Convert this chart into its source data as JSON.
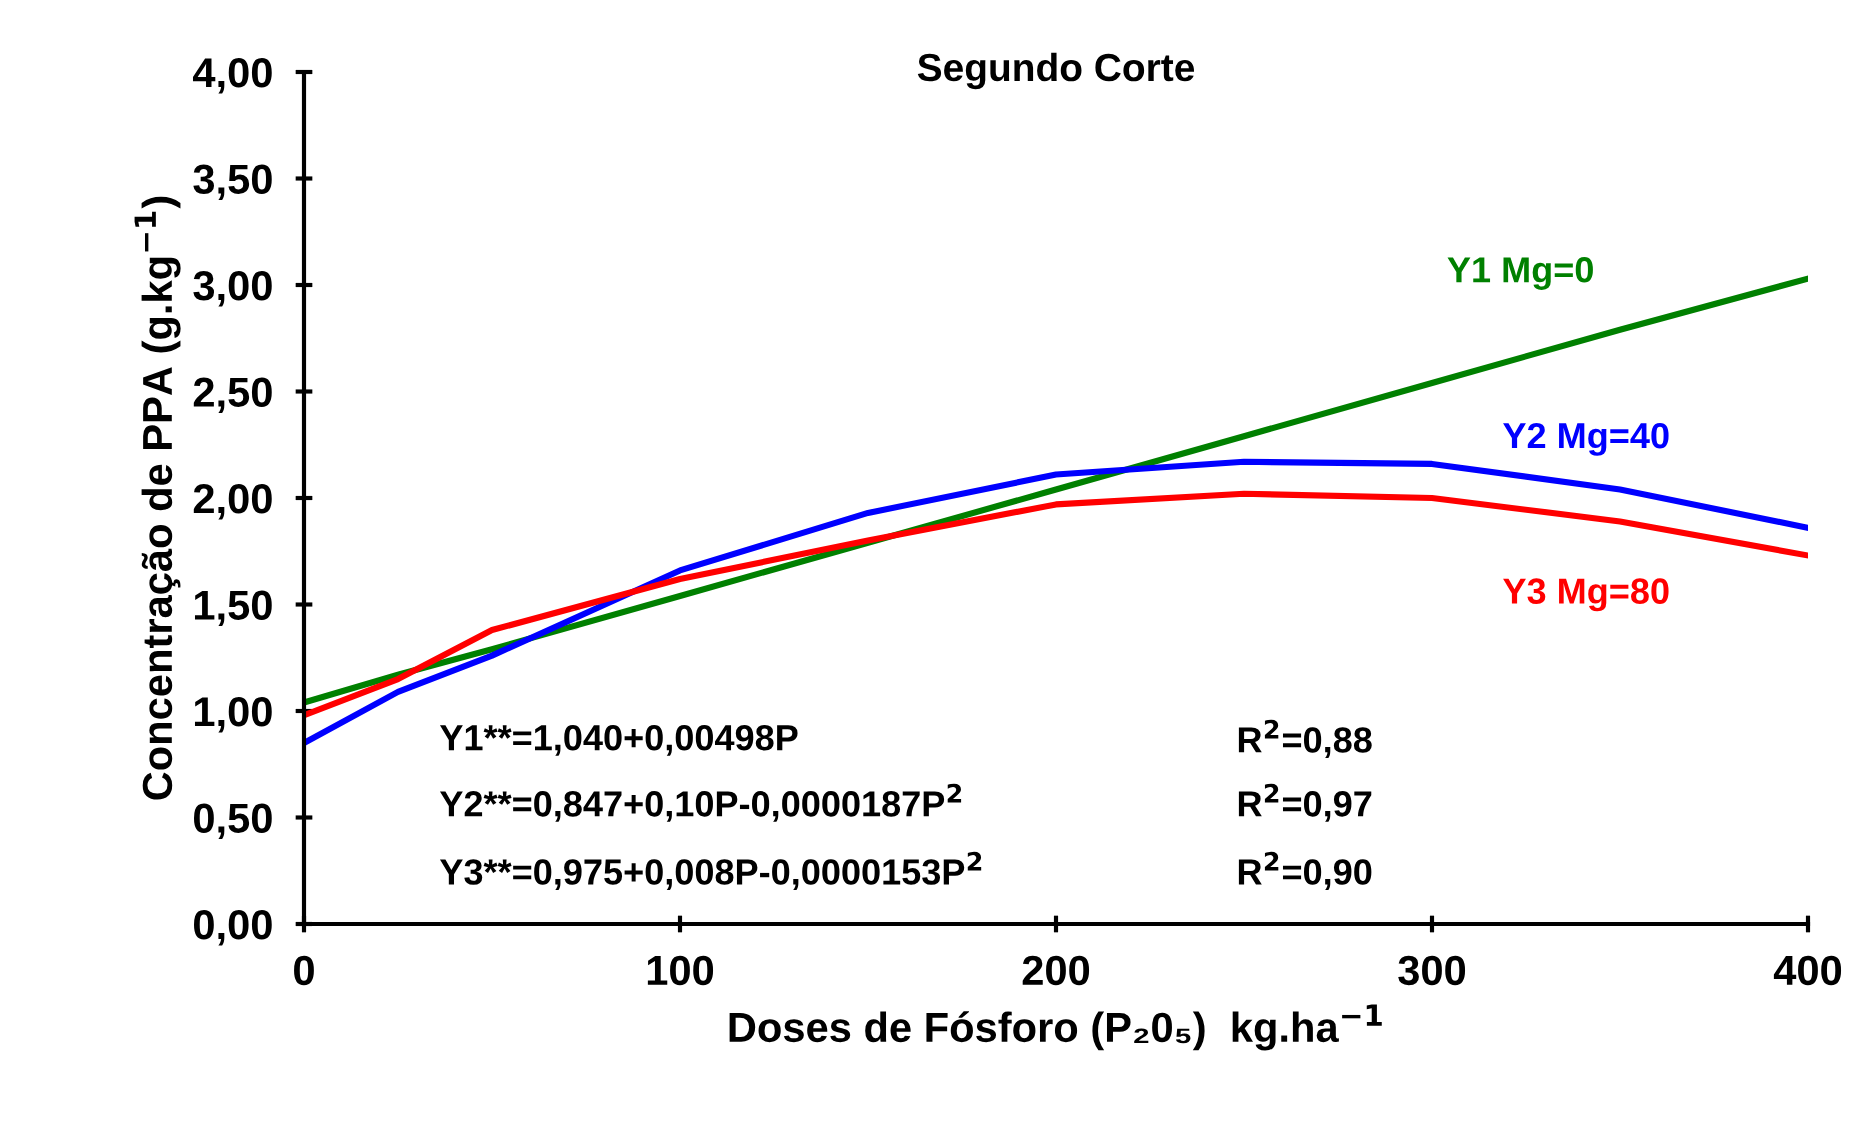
{
  "chart_data": {
    "type": "line",
    "title": "Segundo Corte",
    "xlabel": "Doses de Fósforo (P₂0₅)  kg.ha$^{−1}$",
    "ylabel": "Concentração de PPA (g.kg$^{−1}$)",
    "xlim": [
      0,
      400
    ],
    "xticks": [
      0,
      100,
      200,
      300,
      400
    ],
    "ylim": [
      0,
      4
    ],
    "yticks": [
      {
        "value": 0,
        "label": "0,00"
      },
      {
        "value": 0.5,
        "label": "0,50"
      },
      {
        "value": 1,
        "label": "1,00"
      },
      {
        "value": 1.5,
        "label": "1,50"
      },
      {
        "value": 2,
        "label": "2,00"
      },
      {
        "value": 2.5,
        "label": "2,50"
      },
      {
        "value": 3,
        "label": "3,00"
      },
      {
        "value": 3.5,
        "label": "3,50"
      },
      {
        "value": 4,
        "label": "4,00"
      }
    ],
    "x": [
      0,
      25,
      50,
      100,
      150,
      200,
      250,
      300,
      350,
      400
    ],
    "series": [
      {
        "name": "Y1 Mg=0",
        "color": "#008000",
        "values": [
          1.04,
          1.17,
          1.29,
          1.54,
          1.79,
          2.04,
          2.29,
          2.54,
          2.79,
          3.03
        ]
      },
      {
        "name": "Y2 Mg=40",
        "color": "#0000ff",
        "values": [
          0.85,
          1.09,
          1.26,
          1.66,
          1.93,
          2.11,
          2.17,
          2.16,
          2.04,
          1.86
        ]
      },
      {
        "name": "Y3 Mg=80",
        "color": "#ff0000",
        "values": [
          0.98,
          1.15,
          1.38,
          1.62,
          1.8,
          1.97,
          2.02,
          2.0,
          1.89,
          1.73
        ]
      }
    ],
    "annotations": [
      "Y1**=1,040+0,00498P",
      "R$^{2}$=0,88",
      "Y2**=0,847+0,10P-0,0000187P$^{2}$",
      "R$^{2}$=0,97",
      "Y3**=0,975+0,008P-0,0000153P$^{2}$",
      "R$^{2}$=0,90"
    ],
    "grid": false,
    "legend": false,
    "marker": "none",
    "line_style": "solid"
  }
}
